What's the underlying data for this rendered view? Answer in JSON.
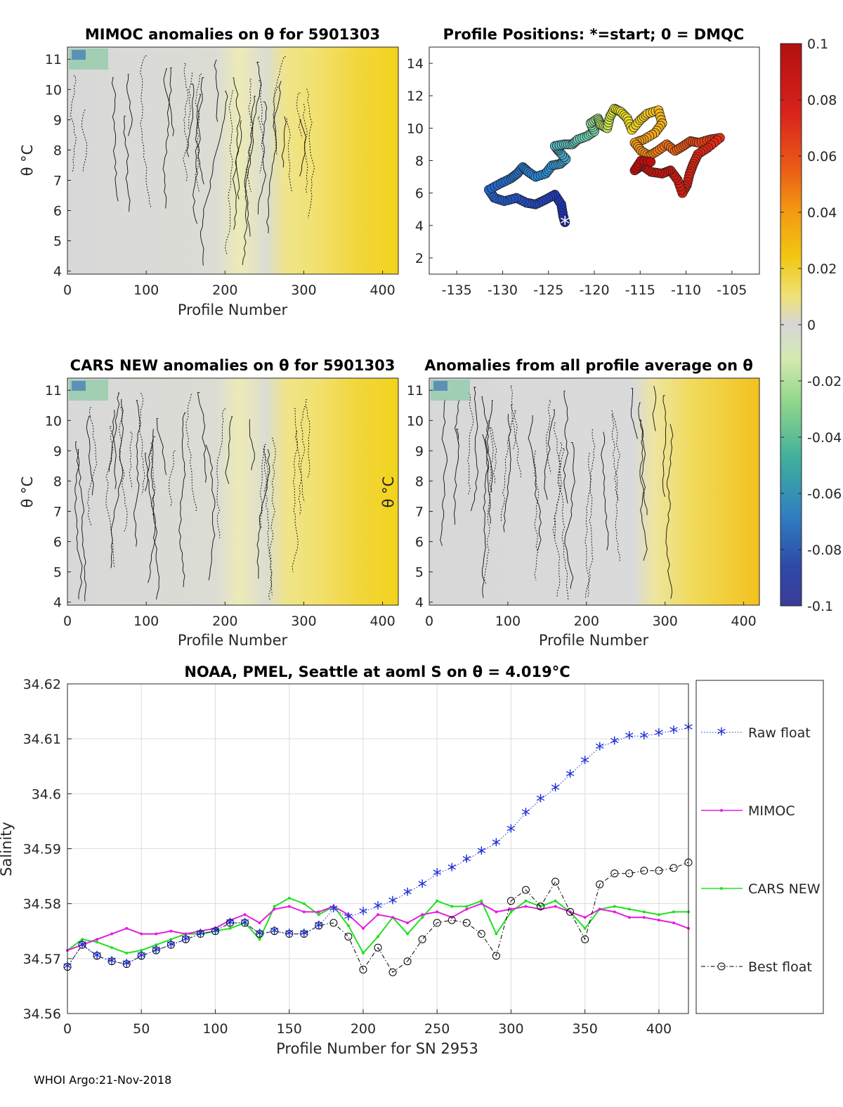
{
  "footer": "WHOI Argo:21-Nov-2018",
  "colors": {
    "raw": "#1f2fd8",
    "mimoc": "#e21fe0",
    "cars": "#22e021",
    "best": "#000000",
    "gray": "#d9d9d9",
    "yellow": "#f2d31a",
    "grid": "#dcdcdc"
  },
  "chart_data": [
    {
      "type": "heatmap",
      "title": "MIMOC anomalies on θ  for 5901303",
      "xlabel": "Profile Number",
      "ylabel": "θ °C",
      "xlim": [
        0,
        420
      ],
      "ylim": [
        3.9,
        11.4
      ],
      "xticks": [
        0,
        100,
        200,
        300,
        400
      ],
      "yticks": [
        4,
        5,
        6,
        7,
        8,
        9,
        10,
        11
      ],
      "description_values": {
        "profile_0_to_280": 0.0,
        "profile_300_to_420": 0.04
      }
    },
    {
      "type": "scatter",
      "title": "Profile Positions: *=start; 0 = DMQC",
      "xlabel": "",
      "ylabel": "",
      "xlim": [
        -138,
        -102
      ],
      "ylim": [
        1,
        15
      ],
      "xticks": [
        -135,
        -130,
        -125,
        -120,
        -115,
        -110,
        -105
      ],
      "yticks": [
        2,
        4,
        6,
        8,
        10,
        12,
        14
      ],
      "start_marker": "*",
      "track": [
        [
          -123.2,
          4.2
        ],
        [
          -123.4,
          4.6
        ],
        [
          -123.6,
          5.3
        ],
        [
          -124.3,
          5.9
        ],
        [
          -125.3,
          5.6
        ],
        [
          -126.4,
          5.3
        ],
        [
          -127.4,
          5.4
        ],
        [
          -128.5,
          5.7
        ],
        [
          -129.8,
          5.5
        ],
        [
          -130.9,
          5.7
        ],
        [
          -131.5,
          6.2
        ],
        [
          -130.2,
          6.6
        ],
        [
          -129.1,
          6.9
        ],
        [
          -128.4,
          7.2
        ],
        [
          -127.8,
          7.6
        ],
        [
          -127.2,
          7.3
        ],
        [
          -126.4,
          7.0
        ],
        [
          -125.3,
          7.2
        ],
        [
          -124.6,
          7.7
        ],
        [
          -123.7,
          7.8
        ],
        [
          -123.1,
          8.1
        ],
        [
          -123.9,
          8.6
        ],
        [
          -124.3,
          8.9
        ],
        [
          -123.3,
          9.0
        ],
        [
          -122.4,
          9.0
        ],
        [
          -121.8,
          9.3
        ],
        [
          -120.8,
          9.5
        ],
        [
          -120.0,
          9.8
        ],
        [
          -120.4,
          10.3
        ],
        [
          -119.6,
          10.6
        ],
        [
          -119.3,
          10.2
        ],
        [
          -118.6,
          10.0
        ],
        [
          -118.3,
          10.7
        ],
        [
          -117.8,
          11.2
        ],
        [
          -117.1,
          11.0
        ],
        [
          -116.4,
          10.6
        ],
        [
          -115.9,
          9.9
        ],
        [
          -115.0,
          10.5
        ],
        [
          -114.2,
          10.9
        ],
        [
          -113.0,
          11.1
        ],
        [
          -112.6,
          10.3
        ],
        [
          -113.4,
          9.7
        ],
        [
          -114.6,
          9.3
        ],
        [
          -115.6,
          9.1
        ],
        [
          -114.9,
          8.6
        ],
        [
          -114.0,
          8.3
        ],
        [
          -113.1,
          8.6
        ],
        [
          -112.1,
          9.0
        ],
        [
          -111.2,
          8.6
        ],
        [
          -110.3,
          8.9
        ],
        [
          -109.5,
          9.2
        ],
        [
          -108.6,
          9.1
        ],
        [
          -107.4,
          9.3
        ],
        [
          -106.3,
          9.4
        ],
        [
          -107.6,
          8.8
        ],
        [
          -108.7,
          8.4
        ],
        [
          -109.2,
          7.8
        ],
        [
          -109.6,
          7.2
        ],
        [
          -109.9,
          6.5
        ],
        [
          -110.4,
          6.0
        ],
        [
          -110.9,
          6.8
        ],
        [
          -111.7,
          7.4
        ],
        [
          -112.6,
          7.2
        ],
        [
          -113.8,
          7.3
        ],
        [
          -114.8,
          7.7
        ],
        [
          -115.6,
          7.4
        ],
        [
          -114.9,
          8.0
        ],
        [
          -113.5,
          7.9
        ]
      ]
    },
    {
      "type": "heatmap",
      "title": "CARS NEW anomalies on θ for 5901303",
      "xlabel": "Profile Number",
      "ylabel": "θ °C",
      "xlim": [
        0,
        420
      ],
      "ylim": [
        3.9,
        11.4
      ],
      "xticks": [
        0,
        100,
        200,
        300,
        400
      ],
      "yticks": [
        4,
        5,
        6,
        7,
        8,
        9,
        10,
        11
      ]
    },
    {
      "type": "heatmap",
      "title": "Anomalies from all profile average on θ",
      "xlabel": "Profile Number",
      "ylabel": "θ °C",
      "xlim": [
        0,
        420
      ],
      "ylim": [
        3.9,
        11.4
      ],
      "xticks": [
        0,
        100,
        200,
        300,
        400
      ],
      "yticks": [
        4,
        5,
        6,
        7,
        8,
        9,
        10,
        11
      ]
    },
    {
      "type": "colorbar",
      "title": "",
      "range": [
        -0.1,
        0.1
      ],
      "ticks": [
        "0.1",
        "0.08",
        "0.06",
        "0.04",
        "0.02",
        "0",
        "-0.02",
        "-0.04",
        "-0.06",
        "-0.08",
        "-0.1"
      ],
      "colors": [
        "#b21616",
        "#d8221c",
        "#ea5a16",
        "#f38f12",
        "#f2c712",
        "#f0e36a",
        "#d6d6d6",
        "#c7e6a0",
        "#7fcf86",
        "#3fae9d",
        "#2f7fc0",
        "#2f49a8",
        "#3a3c96"
      ]
    },
    {
      "type": "line",
      "title": "NOAA, PMEL, Seattle at aoml S on θ = 4.019°C",
      "xlabel": "Profile Number for SN 2953",
      "ylabel": "Salinity",
      "xlim": [
        0,
        420
      ],
      "ylim": [
        34.56,
        34.62
      ],
      "xticks": [
        0,
        50,
        100,
        150,
        200,
        250,
        300,
        350,
        400
      ],
      "yticks": [
        34.56,
        34.57,
        34.58,
        34.59,
        34.6,
        34.61,
        34.62
      ],
      "ytick_labels": [
        "34.56",
        "34.57",
        "34.58",
        "34.59",
        "34.6",
        "34.61",
        "34.62"
      ],
      "grid": true,
      "legend_position": "right",
      "series": [
        {
          "name": "Raw float",
          "style": "dotted-star",
          "x": [
            0,
            10,
            20,
            30,
            40,
            50,
            60,
            70,
            80,
            90,
            100,
            110,
            120,
            130,
            140,
            150,
            160,
            170,
            180,
            190,
            200,
            210,
            220,
            230,
            240,
            250,
            260,
            270,
            280,
            290,
            300,
            310,
            320,
            330,
            340,
            350,
            360,
            370,
            380,
            390,
            400,
            410,
            420
          ],
          "y": [
            34.5685,
            34.5725,
            34.5705,
            34.5695,
            34.569,
            34.5705,
            34.5715,
            34.5725,
            34.5735,
            34.5745,
            34.575,
            34.5765,
            34.5765,
            34.5745,
            34.575,
            34.5745,
            34.5745,
            34.576,
            34.579,
            34.5775,
            34.5785,
            34.5795,
            34.5805,
            34.582,
            34.5835,
            34.5855,
            34.5865,
            34.588,
            34.5895,
            34.591,
            34.5935,
            34.5965,
            34.599,
            34.601,
            34.6035,
            34.606,
            34.6085,
            34.6095,
            34.6105,
            34.6105,
            34.611,
            34.6115,
            34.612
          ]
        },
        {
          "name": "MIMOC",
          "style": "solid-dot",
          "x": [
            0,
            10,
            20,
            30,
            40,
            50,
            60,
            70,
            80,
            90,
            100,
            110,
            120,
            130,
            140,
            150,
            160,
            170,
            180,
            190,
            200,
            210,
            220,
            230,
            240,
            250,
            260,
            270,
            280,
            290,
            300,
            310,
            320,
            330,
            340,
            350,
            360,
            370,
            380,
            390,
            400,
            410,
            420
          ],
          "y": [
            34.5715,
            34.5725,
            34.5735,
            34.5745,
            34.5755,
            34.5745,
            34.5745,
            34.575,
            34.5745,
            34.575,
            34.5755,
            34.577,
            34.578,
            34.5765,
            34.579,
            34.5795,
            34.5785,
            34.5785,
            34.5795,
            34.578,
            34.5755,
            34.578,
            34.5775,
            34.5765,
            34.578,
            34.5785,
            34.5775,
            34.579,
            34.58,
            34.5785,
            34.579,
            34.5795,
            34.579,
            34.5795,
            34.5785,
            34.5775,
            34.579,
            34.5785,
            34.5775,
            34.5775,
            34.577,
            34.5765,
            34.5755
          ]
        },
        {
          "name": "CARS NEW",
          "style": "solid-dot",
          "x": [
            0,
            10,
            20,
            30,
            40,
            50,
            60,
            70,
            80,
            90,
            100,
            110,
            120,
            130,
            140,
            150,
            160,
            170,
            180,
            190,
            200,
            210,
            220,
            230,
            240,
            250,
            260,
            270,
            280,
            290,
            300,
            310,
            320,
            330,
            340,
            350,
            360,
            370,
            380,
            390,
            400,
            410,
            420
          ],
          "y": [
            34.5715,
            34.5735,
            34.573,
            34.572,
            34.571,
            34.5715,
            34.5725,
            34.5735,
            34.5745,
            34.5745,
            34.575,
            34.5755,
            34.5765,
            34.5735,
            34.5795,
            34.581,
            34.58,
            34.578,
            34.5795,
            34.576,
            34.571,
            34.574,
            34.5775,
            34.5745,
            34.5775,
            34.5805,
            34.5795,
            34.5795,
            34.5805,
            34.5745,
            34.5785,
            34.5805,
            34.5795,
            34.5805,
            34.5785,
            34.5755,
            34.579,
            34.5795,
            34.579,
            34.5785,
            34.578,
            34.5785,
            34.5785
          ]
        },
        {
          "name": "Best float",
          "style": "dashdot-circle",
          "x": [
            0,
            10,
            20,
            30,
            40,
            50,
            60,
            70,
            80,
            90,
            100,
            110,
            120,
            130,
            140,
            150,
            160,
            170,
            180,
            190,
            200,
            210,
            220,
            230,
            240,
            250,
            260,
            270,
            280,
            290,
            300,
            310,
            320,
            330,
            340,
            350,
            360,
            370,
            380,
            390,
            400,
            410,
            420
          ],
          "y": [
            34.5685,
            34.5725,
            34.5705,
            34.5695,
            34.569,
            34.5705,
            34.5715,
            34.5725,
            34.5735,
            34.5745,
            34.575,
            34.5765,
            34.5765,
            34.5745,
            34.575,
            34.5745,
            34.5745,
            34.576,
            34.5765,
            34.574,
            34.568,
            34.572,
            34.5675,
            34.5695,
            34.5735,
            34.5765,
            34.577,
            34.5765,
            34.5745,
            34.5705,
            34.5805,
            34.5825,
            34.5795,
            34.584,
            34.5785,
            34.5735,
            34.5835,
            34.5855,
            34.5855,
            34.586,
            34.586,
            34.5865,
            34.5875
          ]
        }
      ]
    }
  ]
}
